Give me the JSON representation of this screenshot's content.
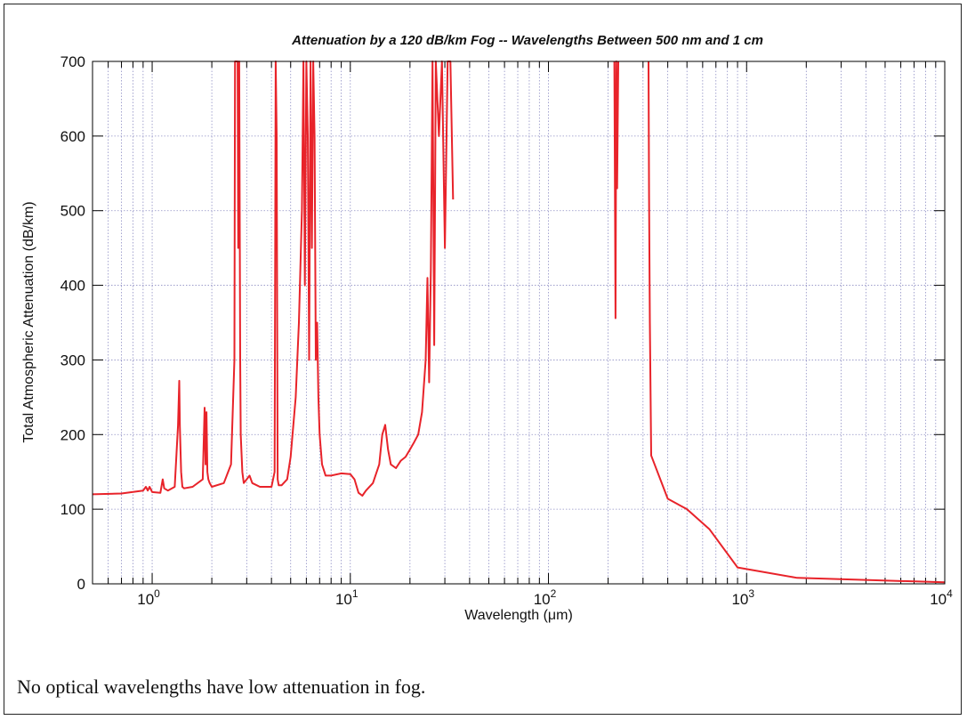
{
  "caption": "No optical wavelengths have low attenuation in fog.",
  "chart_data": {
    "type": "line",
    "title": "Attenuation by a 120 dB/km Fog -- Wavelengths Between 500 nm and 1 cm",
    "xlabel": "Wavelength (μm)",
    "ylabel": "Total Atmospheric Attenuation (dB/km)",
    "x_scale": "log",
    "xlim": [
      0.5,
      10000
    ],
    "ylim": [
      0,
      700
    ],
    "x_ticks": [
      {
        "value": 1,
        "base": "10",
        "exp": "0"
      },
      {
        "value": 10,
        "base": "10",
        "exp": "1"
      },
      {
        "value": 100,
        "base": "10",
        "exp": "2"
      },
      {
        "value": 1000,
        "base": "10",
        "exp": "3"
      },
      {
        "value": 10000,
        "base": "10",
        "exp": "4"
      }
    ],
    "y_ticks": [
      "0",
      "100",
      "200",
      "300",
      "400",
      "500",
      "600",
      "700"
    ],
    "grid": true,
    "line_color": "#e8232a",
    "series": [
      {
        "x": [
          0.5,
          0.7,
          0.9,
          0.93,
          0.95,
          0.97,
          1.0,
          1.1,
          1.13,
          1.15,
          1.2,
          1.3,
          1.35,
          1.37,
          1.38,
          1.4,
          1.42,
          1.45,
          1.6,
          1.8,
          1.84,
          1.86,
          1.88,
          1.9,
          1.92,
          1.95,
          2.0,
          2.3,
          2.5,
          2.6,
          2.62,
          2.65,
          2.68,
          2.7,
          2.72,
          2.75,
          2.78,
          2.8,
          2.85,
          2.9,
          3.0,
          3.1,
          3.2,
          3.5,
          3.8,
          4.0,
          4.15,
          4.2,
          4.25,
          4.3,
          4.35,
          4.5,
          4.8,
          5.0,
          5.3,
          5.5,
          5.7,
          5.8,
          5.9,
          6.0,
          6.1,
          6.2,
          6.3,
          6.4,
          6.5,
          6.6,
          6.7,
          6.8,
          6.9,
          7.0,
          7.2,
          7.5,
          8.0,
          9.0,
          10.0,
          10.5,
          11.0,
          11.5,
          12.0,
          13.0,
          14.0,
          14.5,
          15.0,
          15.5,
          16.0,
          17.0,
          18.0,
          19.0,
          20.0,
          21.0,
          22.0,
          23.0,
          24.0,
          24.5,
          25.0,
          25.5,
          26.0,
          26.5,
          27.0,
          28.0,
          29.0,
          30.0,
          31.0,
          32.0,
          33.0
        ],
        "y": [
          120,
          121,
          125,
          130,
          125,
          130,
          123,
          122,
          140,
          128,
          125,
          130,
          212,
          272,
          210,
          150,
          130,
          128,
          130,
          140,
          236,
          160,
          230,
          150,
          140,
          135,
          130,
          135,
          160,
          300,
          700,
          700,
          700,
          700,
          450,
          700,
          300,
          200,
          150,
          135,
          140,
          145,
          135,
          130,
          130,
          130,
          150,
          700,
          600,
          140,
          132,
          132,
          140,
          170,
          250,
          350,
          500,
          700,
          400,
          700,
          600,
          300,
          700,
          450,
          700,
          600,
          300,
          350,
          250,
          200,
          160,
          145,
          145,
          148,
          147,
          140,
          122,
          118,
          125,
          135,
          160,
          200,
          213,
          180,
          160,
          155,
          165,
          170,
          180,
          190,
          200,
          230,
          300,
          410,
          270,
          420,
          700,
          320,
          700,
          600,
          700,
          450,
          700,
          700,
          515
        ]
      },
      {
        "x": [
          215,
          218,
          220,
          222,
          225
        ],
        "y": [
          700,
          356,
          700,
          530,
          700
        ]
      },
      {
        "x": [
          320,
          322,
          325,
          330,
          400,
          500,
          650,
          900,
          1800,
          10000
        ],
        "y": [
          700,
          520,
          350,
          172,
          114,
          100,
          73,
          22,
          8,
          2
        ]
      }
    ]
  }
}
